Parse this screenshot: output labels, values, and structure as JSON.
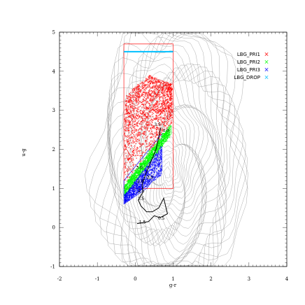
{
  "chart_data": {
    "type": "scatter",
    "xlabel": "g-r",
    "ylabel": "u-g",
    "xlim": [
      -2,
      4
    ],
    "ylim": [
      -1,
      5
    ],
    "x_ticks": [
      "-2",
      "-1",
      "0",
      "1",
      "2",
      "3",
      "4"
    ],
    "y_ticks": [
      "-1",
      "0",
      "1",
      "2",
      "3",
      "4",
      "5"
    ],
    "legend_position": "top-right",
    "series": [
      {
        "name": "LBG_PRI1",
        "color": "#ff0000",
        "marker": "x"
      },
      {
        "name": "LBG_PRI2",
        "color": "#00ff00",
        "marker": "x"
      },
      {
        "name": "LBG_PRI3",
        "color": "#0000ff",
        "marker": "x"
      },
      {
        "name": "LBG_DROP",
        "color": "#00bfff",
        "marker": "x"
      }
    ],
    "selection_regions": [
      {
        "name": "LBG_PRI1",
        "color": "#ff0000",
        "polygon": [
          [
            -0.3,
            1.0
          ],
          [
            1.0,
            1.0
          ],
          [
            1.0,
            4.7
          ],
          [
            -0.3,
            4.7
          ]
        ]
      },
      {
        "name": "LBG_PRI2",
        "color": "#00ff00",
        "polygon": [
          [
            -0.3,
            1.0
          ],
          [
            0.95,
            2.6
          ],
          [
            0.95,
            2.4
          ],
          [
            -0.3,
            0.8
          ]
        ]
      },
      {
        "name": "LBG_PRI3",
        "color": "#0000ff",
        "polygon": [
          [
            -0.3,
            0.6
          ],
          [
            0.3,
            1.0
          ],
          [
            0.7,
            1.5
          ],
          [
            0.7,
            2.4
          ],
          [
            -0.3,
            1.2
          ]
        ]
      }
    ],
    "lbg_drop_line": {
      "x": [
        -0.3,
        1.0
      ],
      "y": 4.5
    },
    "redshift_track": {
      "x": [
        0.67,
        0.55,
        0.33,
        0.25,
        0.18,
        0.2,
        0.08,
        0.15,
        0.3,
        0.45,
        0.62,
        0.75,
        0.85,
        0.65,
        0.5,
        0.35,
        0.05
      ],
      "y": [
        2.55,
        2.0,
        1.5,
        1.3,
        1.1,
        0.9,
        0.7,
        0.55,
        0.4,
        0.4,
        0.5,
        0.75,
        0.35,
        0.25,
        0.3,
        0.15,
        0.1
      ],
      "labels": [
        {
          "text": "3.5",
          "x": 0.5,
          "y": 2.6
        },
        {
          "text": "4.0",
          "x": 0.72,
          "y": 2.45
        },
        {
          "text": "3.0",
          "x": 0.02,
          "y": 1.5
        },
        {
          "text": "2.0",
          "x": 0.3,
          "y": 1.25
        },
        {
          "text": "2.8",
          "x": 0.05,
          "y": 1.15
        },
        {
          "text": "2.5",
          "x": 0.07,
          "y": 0.9
        },
        {
          "text": "1.5",
          "x": 0.06,
          "y": 0.7
        },
        {
          "text": "1.5",
          "x": 0.1,
          "y": 0.1
        },
        {
          "text": "0.5",
          "x": 0.6,
          "y": 0.2
        }
      ]
    },
    "background_contours": true
  }
}
